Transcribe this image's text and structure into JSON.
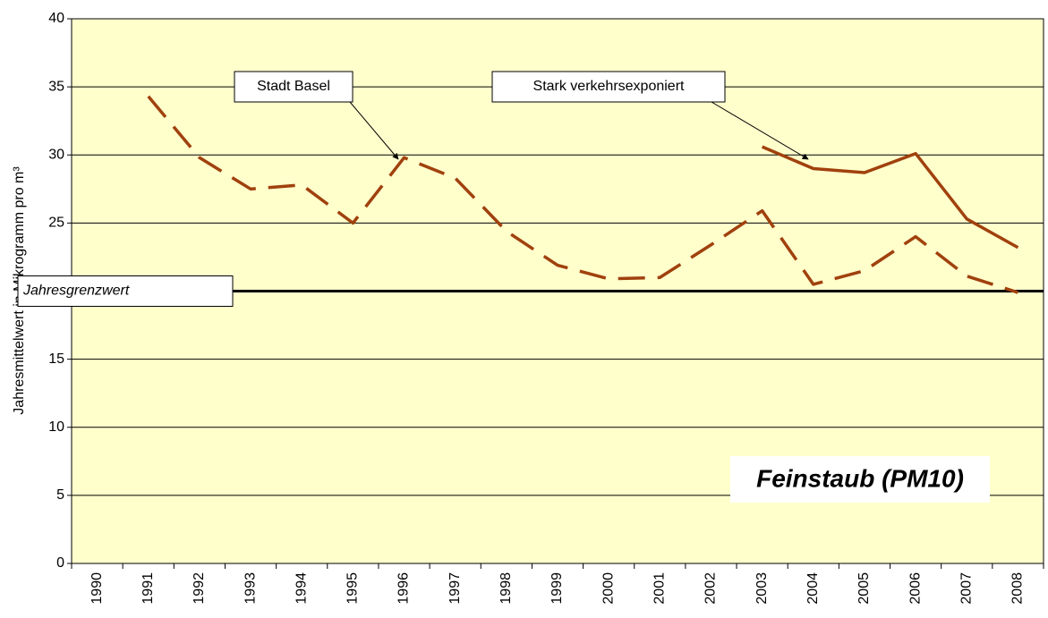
{
  "chart_data": {
    "type": "line",
    "title": "Feinstaub (PM10)",
    "y_label": "Jahresmittelwert in Mikrogramm pro m³",
    "categories": [
      "1990",
      "1991",
      "1992",
      "1993",
      "1994",
      "1995",
      "1996",
      "1997",
      "1998",
      "1999",
      "2000",
      "2001",
      "2002",
      "2003",
      "2004",
      "2005",
      "2006",
      "2007",
      "2008"
    ],
    "series": [
      {
        "name": "Stadt Basel",
        "color": "#a0410d",
        "dashed": true,
        "values": [
          null,
          34.3,
          29.8,
          27.5,
          27.8,
          25.0,
          29.8,
          28.3,
          24.4,
          21.9,
          20.9,
          21.0,
          23.4,
          25.9,
          20.5,
          21.5,
          24.0,
          21.1,
          19.9
        ]
      },
      {
        "name": "Stark verkehrsexponiert",
        "color": "#a0410d",
        "dashed": false,
        "values": [
          null,
          null,
          null,
          null,
          null,
          null,
          null,
          null,
          null,
          null,
          null,
          null,
          null,
          30.6,
          29.0,
          28.7,
          30.1,
          25.3,
          23.2
        ]
      }
    ],
    "threshold": {
      "value": 20,
      "label": "Jahresgrenzwert"
    },
    "ylim": [
      0,
      40
    ],
    "yticks": [
      0,
      5,
      10,
      15,
      20,
      25,
      30,
      35,
      40
    ],
    "grid": true
  }
}
